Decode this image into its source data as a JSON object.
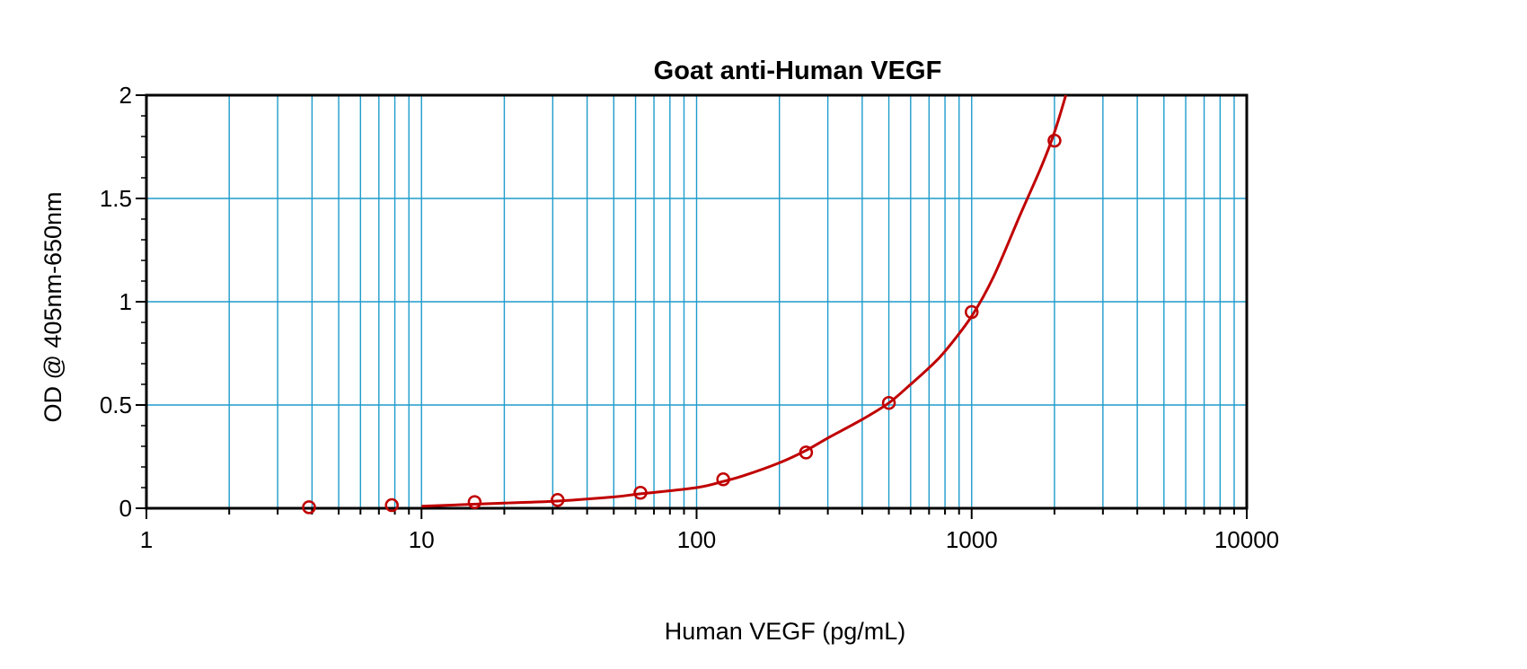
{
  "chart_data": {
    "type": "scatter",
    "title": "Goat anti-Human VEGF",
    "xlabel": "Human VEGF (pg/mL)",
    "ylabel": "OD @ 405nm-650nm",
    "xscale": "log",
    "xlim": [
      1,
      10000
    ],
    "ylim": [
      0,
      2
    ],
    "x_ticks": [
      1,
      10,
      100,
      1000,
      10000
    ],
    "x_tick_labels": [
      "1",
      "10",
      "100",
      "1000",
      "10000"
    ],
    "y_ticks": [
      0,
      0.5,
      1,
      1.5,
      2
    ],
    "y_tick_labels": [
      "0",
      "0.5",
      "1",
      "1.5",
      "2"
    ],
    "grid": true,
    "legend": "none",
    "series": [
      {
        "x": [
          3.9,
          7.8,
          15.6,
          31.25,
          62.5,
          125,
          250,
          500,
          1000,
          2000
        ],
        "y": [
          0.005,
          0.015,
          0.03,
          0.04,
          0.075,
          0.14,
          0.27,
          0.51,
          0.95,
          1.78
        ],
        "color": "#c00000",
        "marker": "open-circle"
      }
    ],
    "fit_curve": {
      "x": [
        10,
        20,
        31.25,
        50,
        62.5,
        100,
        125,
        150,
        200,
        250,
        300,
        400,
        500,
        600,
        700,
        800,
        1000,
        1200,
        1500,
        1800,
        2000,
        2200
      ],
      "y": [
        0.01,
        0.025,
        0.035,
        0.055,
        0.07,
        0.1,
        0.13,
        0.16,
        0.22,
        0.28,
        0.34,
        0.43,
        0.51,
        0.6,
        0.68,
        0.76,
        0.93,
        1.12,
        1.42,
        1.66,
        1.82,
        2.0
      ],
      "color": "#c00000"
    },
    "colors": {
      "grid": "#1e9ccc",
      "axes": "#000000",
      "data": "#c00000"
    }
  }
}
